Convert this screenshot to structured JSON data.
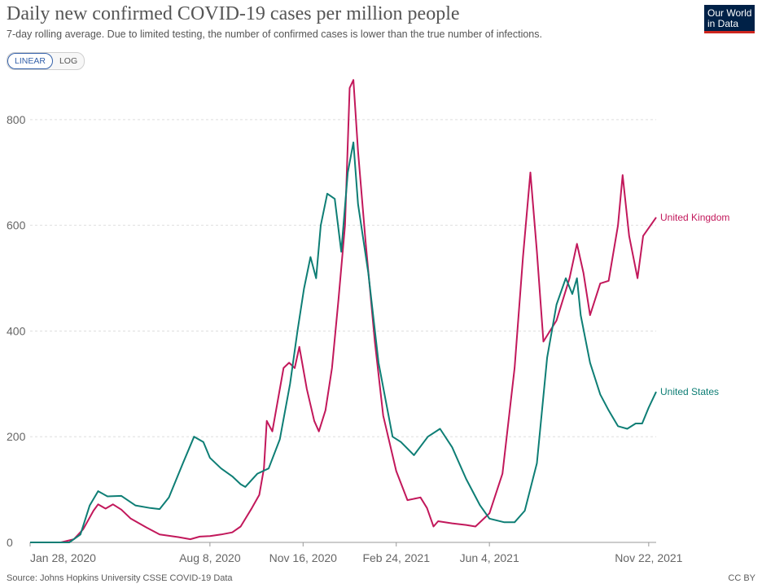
{
  "header": {
    "title": "Daily new confirmed COVID-19 cases per million people",
    "subtitle": "7-day rolling average. Due to limited testing, the number of confirmed cases is lower than the true number of infections."
  },
  "logo": {
    "line1": "Our World",
    "line2": "in Data",
    "bg_color": "#002147",
    "accent_color": "#ce261e"
  },
  "scale_toggle": {
    "options": [
      "LINEAR",
      "LOG"
    ],
    "selected": "LINEAR"
  },
  "footer": {
    "source": "Source: Johns Hopkins University CSSE COVID-19 Data",
    "license": "CC BY"
  },
  "chart_data": {
    "type": "line",
    "title": "Daily new confirmed COVID-19 cases per million people",
    "xlabel": "",
    "ylabel": "",
    "x_range": [
      "2020-01-28",
      "2021-11-30"
    ],
    "ylim": [
      0,
      880
    ],
    "y_ticks": [
      0,
      200,
      400,
      600,
      800
    ],
    "x_ticks": [
      {
        "date": "2020-01-28",
        "label": "Jan 28, 2020"
      },
      {
        "date": "2020-08-08",
        "label": "Aug 8, 2020"
      },
      {
        "date": "2020-11-16",
        "label": "Nov 16, 2020"
      },
      {
        "date": "2021-02-24",
        "label": "Feb 24, 2021"
      },
      {
        "date": "2021-06-04",
        "label": "Jun 4, 2021"
      },
      {
        "date": "2021-11-22",
        "label": "Nov 22, 2021"
      }
    ],
    "grid": true,
    "legend": "inline-right",
    "series": [
      {
        "name": "United Kingdom",
        "color": "#c2185b",
        "points": [
          [
            "2020-01-28",
            0
          ],
          [
            "2020-03-01",
            0
          ],
          [
            "2020-03-15",
            6
          ],
          [
            "2020-03-25",
            25
          ],
          [
            "2020-04-05",
            60
          ],
          [
            "2020-04-10",
            72
          ],
          [
            "2020-04-18",
            64
          ],
          [
            "2020-04-26",
            72
          ],
          [
            "2020-05-05",
            62
          ],
          [
            "2020-05-15",
            45
          ],
          [
            "2020-06-01",
            28
          ],
          [
            "2020-06-15",
            15
          ],
          [
            "2020-07-05",
            10
          ],
          [
            "2020-07-18",
            6
          ],
          [
            "2020-07-28",
            11
          ],
          [
            "2020-08-08",
            12
          ],
          [
            "2020-08-20",
            15
          ],
          [
            "2020-09-01",
            19
          ],
          [
            "2020-09-10",
            30
          ],
          [
            "2020-09-22",
            65
          ],
          [
            "2020-09-30",
            90
          ],
          [
            "2020-10-05",
            140
          ],
          [
            "2020-10-08",
            230
          ],
          [
            "2020-10-14",
            210
          ],
          [
            "2020-10-20",
            270
          ],
          [
            "2020-10-26",
            330
          ],
          [
            "2020-11-01",
            340
          ],
          [
            "2020-11-07",
            330
          ],
          [
            "2020-11-12",
            370
          ],
          [
            "2020-11-20",
            290
          ],
          [
            "2020-11-28",
            230
          ],
          [
            "2020-12-03",
            210
          ],
          [
            "2020-12-10",
            250
          ],
          [
            "2020-12-17",
            330
          ],
          [
            "2020-12-24",
            460
          ],
          [
            "2020-12-31",
            600
          ],
          [
            "2021-01-05",
            860
          ],
          [
            "2021-01-09",
            875
          ],
          [
            "2021-01-14",
            740
          ],
          [
            "2021-01-22",
            570
          ],
          [
            "2021-02-01",
            380
          ],
          [
            "2021-02-10",
            240
          ],
          [
            "2021-02-24",
            135
          ],
          [
            "2021-03-08",
            80
          ],
          [
            "2021-03-22",
            85
          ],
          [
            "2021-03-29",
            65
          ],
          [
            "2021-04-05",
            30
          ],
          [
            "2021-04-10",
            40
          ],
          [
            "2021-04-25",
            36
          ],
          [
            "2021-05-10",
            33
          ],
          [
            "2021-05-20",
            30
          ],
          [
            "2021-06-04",
            55
          ],
          [
            "2021-06-18",
            130
          ],
          [
            "2021-07-01",
            330
          ],
          [
            "2021-07-10",
            540
          ],
          [
            "2021-07-18",
            700
          ],
          [
            "2021-07-25",
            550
          ],
          [
            "2021-08-01",
            380
          ],
          [
            "2021-08-15",
            420
          ],
          [
            "2021-08-29",
            500
          ],
          [
            "2021-09-06",
            565
          ],
          [
            "2021-09-13",
            510
          ],
          [
            "2021-09-20",
            430
          ],
          [
            "2021-10-01",
            490
          ],
          [
            "2021-10-10",
            495
          ],
          [
            "2021-10-20",
            600
          ],
          [
            "2021-10-25",
            695
          ],
          [
            "2021-11-01",
            580
          ],
          [
            "2021-11-10",
            500
          ],
          [
            "2021-11-16",
            580
          ],
          [
            "2021-11-30",
            615
          ]
        ]
      },
      {
        "name": "United States",
        "color": "#0e7e75",
        "points": [
          [
            "2020-01-28",
            0
          ],
          [
            "2020-03-10",
            0
          ],
          [
            "2020-03-22",
            15
          ],
          [
            "2020-04-01",
            70
          ],
          [
            "2020-04-10",
            97
          ],
          [
            "2020-04-20",
            87
          ],
          [
            "2020-05-05",
            88
          ],
          [
            "2020-05-20",
            70
          ],
          [
            "2020-06-05",
            65
          ],
          [
            "2020-06-15",
            63
          ],
          [
            "2020-06-25",
            85
          ],
          [
            "2020-07-10",
            150
          ],
          [
            "2020-07-22",
            200
          ],
          [
            "2020-08-01",
            190
          ],
          [
            "2020-08-08",
            160
          ],
          [
            "2020-08-20",
            140
          ],
          [
            "2020-09-01",
            125
          ],
          [
            "2020-09-10",
            110
          ],
          [
            "2020-09-15",
            105
          ],
          [
            "2020-09-28",
            130
          ],
          [
            "2020-10-10",
            140
          ],
          [
            "2020-10-22",
            195
          ],
          [
            "2020-11-02",
            300
          ],
          [
            "2020-11-10",
            400
          ],
          [
            "2020-11-17",
            480
          ],
          [
            "2020-11-24",
            540
          ],
          [
            "2020-11-30",
            500
          ],
          [
            "2020-12-05",
            600
          ],
          [
            "2020-12-12",
            660
          ],
          [
            "2020-12-20",
            650
          ],
          [
            "2020-12-27",
            550
          ],
          [
            "2021-01-03",
            700
          ],
          [
            "2021-01-09",
            757
          ],
          [
            "2021-01-14",
            640
          ],
          [
            "2021-01-25",
            510
          ],
          [
            "2021-02-05",
            340
          ],
          [
            "2021-02-20",
            200
          ],
          [
            "2021-03-01",
            190
          ],
          [
            "2021-03-15",
            165
          ],
          [
            "2021-03-30",
            200
          ],
          [
            "2021-04-12",
            215
          ],
          [
            "2021-04-25",
            180
          ],
          [
            "2021-05-10",
            120
          ],
          [
            "2021-05-25",
            70
          ],
          [
            "2021-06-04",
            45
          ],
          [
            "2021-06-20",
            38
          ],
          [
            "2021-07-01",
            38
          ],
          [
            "2021-07-12",
            60
          ],
          [
            "2021-07-25",
            150
          ],
          [
            "2021-08-05",
            350
          ],
          [
            "2021-08-15",
            450
          ],
          [
            "2021-08-25",
            500
          ],
          [
            "2021-09-01",
            470
          ],
          [
            "2021-09-06",
            500
          ],
          [
            "2021-09-10",
            430
          ],
          [
            "2021-09-20",
            340
          ],
          [
            "2021-10-01",
            280
          ],
          [
            "2021-10-10",
            250
          ],
          [
            "2021-10-20",
            220
          ],
          [
            "2021-10-30",
            215
          ],
          [
            "2021-11-08",
            225
          ],
          [
            "2021-11-15",
            225
          ],
          [
            "2021-11-22",
            255
          ],
          [
            "2021-11-30",
            285
          ]
        ]
      }
    ]
  }
}
